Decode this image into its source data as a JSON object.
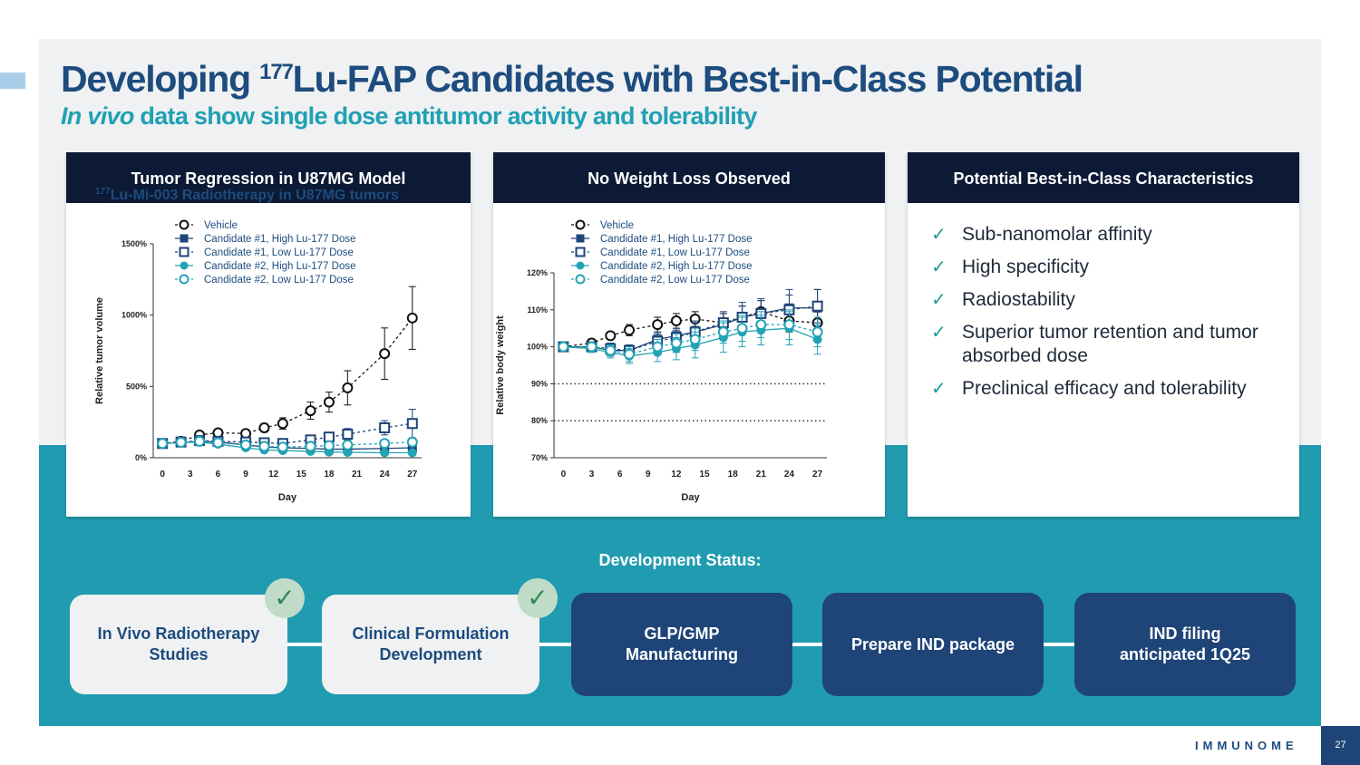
{
  "slide": {
    "title_pre": "Developing ",
    "title_sup": "177",
    "title_post": "Lu-FAP Candidates with Best-in-Class Potential",
    "subtitle_italic": "In vivo",
    "subtitle_rest": " data show single dose antitumor activity and tolerability",
    "page_number": "27",
    "logo_text": "IMMUNOME"
  },
  "colors": {
    "vehicle": "#111111",
    "cand1": "#1e4478",
    "cand2": "#22a3b5",
    "teal_bg": "#219bb0",
    "navy_header": "#0c1a36"
  },
  "legend": [
    "Vehicle",
    "Candidate #1, High Lu-177 Dose",
    "Candidate #1, Low Lu-177 Dose",
    "Candidate #2, High Lu-177 Dose",
    "Candidate #2, Low Lu-177 Dose"
  ],
  "chart_data": [
    {
      "type": "line",
      "header": "Tumor Regression in U87MG Model",
      "title_sup": "177",
      "title": "Lu-Mi-003 Radiotherapy in U87MG tumors",
      "xlabel": "Day",
      "ylabel": "Relative tumor volume",
      "xticks": [
        0,
        3,
        6,
        9,
        12,
        15,
        18,
        21,
        24,
        27
      ],
      "yticks": [
        "0%",
        "500%",
        "1000%",
        "1500%"
      ],
      "ytick_values": [
        0,
        500,
        1000,
        1500
      ],
      "xlim": [
        -1,
        28
      ],
      "ylim": [
        0,
        1500
      ],
      "series": [
        {
          "name": "Vehicle",
          "x": [
            0,
            2,
            4,
            6,
            9,
            11,
            13,
            16,
            18,
            20,
            24,
            27
          ],
          "y": [
            100,
            115,
            160,
            175,
            170,
            210,
            240,
            330,
            390,
            490,
            730,
            980
          ],
          "err": [
            0,
            10,
            15,
            15,
            25,
            30,
            40,
            60,
            70,
            120,
            180,
            220
          ]
        },
        {
          "name": "Candidate #1, High Lu-177 Dose",
          "x": [
            0,
            2,
            4,
            6,
            9,
            11,
            13,
            16,
            18,
            20,
            24,
            27
          ],
          "y": [
            100,
            105,
            115,
            110,
            90,
            75,
            70,
            65,
            60,
            60,
            65,
            70
          ],
          "err": [
            0,
            5,
            8,
            10,
            10,
            10,
            10,
            10,
            10,
            10,
            15,
            20
          ]
        },
        {
          "name": "Candidate #1, Low Lu-177 Dose",
          "x": [
            0,
            2,
            4,
            6,
            9,
            11,
            13,
            16,
            18,
            20,
            24,
            27
          ],
          "y": [
            100,
            110,
            120,
            115,
            110,
            105,
            100,
            125,
            145,
            165,
            210,
            240
          ],
          "err": [
            0,
            8,
            10,
            12,
            15,
            15,
            15,
            25,
            30,
            40,
            50,
            100
          ]
        },
        {
          "name": "Candidate #2, High Lu-177 Dose",
          "x": [
            0,
            2,
            4,
            6,
            9,
            11,
            13,
            16,
            18,
            20,
            24,
            27
          ],
          "y": [
            100,
            105,
            110,
            95,
            70,
            55,
            50,
            45,
            40,
            38,
            35,
            35
          ],
          "err": [
            0,
            5,
            8,
            10,
            10,
            10,
            8,
            8,
            8,
            8,
            8,
            8
          ]
        },
        {
          "name": "Candidate #2, Low Lu-177 Dose",
          "x": [
            0,
            2,
            4,
            6,
            9,
            11,
            13,
            16,
            18,
            20,
            24,
            27
          ],
          "y": [
            100,
            108,
            115,
            105,
            90,
            80,
            75,
            80,
            85,
            90,
            100,
            110
          ],
          "err": [
            0,
            6,
            8,
            10,
            10,
            10,
            10,
            12,
            15,
            15,
            20,
            25
          ]
        }
      ]
    },
    {
      "type": "line",
      "header": "No Weight Loss Observed",
      "xlabel": "Day",
      "ylabel": "Relative body weight",
      "xticks": [
        0,
        3,
        6,
        9,
        12,
        15,
        18,
        21,
        24,
        27
      ],
      "yticks": [
        "70%",
        "80%",
        "90%",
        "100%",
        "110%",
        "120%"
      ],
      "ytick_values": [
        70,
        80,
        90,
        100,
        110,
        120
      ],
      "reference_lines": [
        80,
        90
      ],
      "xlim": [
        -1,
        28
      ],
      "ylim": [
        70,
        120
      ],
      "series": [
        {
          "name": "Vehicle",
          "x": [
            0,
            3,
            5,
            7,
            10,
            12,
            14,
            17,
            19,
            21,
            24,
            27
          ],
          "y": [
            100,
            101,
            103,
            104.5,
            106,
            107,
            107.5,
            106.5,
            108,
            109.5,
            107,
            106.5
          ],
          "err": [
            0,
            1,
            1,
            1.5,
            2,
            2,
            2,
            2.5,
            3,
            3,
            3,
            3
          ]
        },
        {
          "name": "Candidate #1, High Lu-177 Dose",
          "x": [
            0,
            3,
            5,
            7,
            10,
            12,
            14,
            17,
            19,
            21,
            24,
            27
          ],
          "y": [
            100,
            100,
            99,
            99,
            102,
            103,
            104,
            106,
            108,
            109,
            110.5,
            110.5
          ],
          "err": [
            0,
            1,
            1.5,
            1.5,
            2,
            2,
            3,
            3,
            4,
            4,
            5,
            5
          ]
        },
        {
          "name": "Candidate #1, Low Lu-177 Dose",
          "x": [
            0,
            3,
            5,
            7,
            10,
            12,
            14,
            17,
            19,
            21,
            24,
            27
          ],
          "y": [
            100,
            100,
            99.5,
            99,
            101.5,
            102.5,
            104,
            106.5,
            108,
            109,
            110,
            111
          ],
          "err": [
            0,
            1,
            1.5,
            1.5,
            2,
            2,
            2.5,
            3,
            3,
            3.5,
            4,
            4.5
          ]
        },
        {
          "name": "Candidate #2, High Lu-177 Dose",
          "x": [
            0,
            3,
            5,
            7,
            10,
            12,
            14,
            17,
            19,
            21,
            24,
            27
          ],
          "y": [
            100,
            99.5,
            98.5,
            97.5,
            98.5,
            99.5,
            100.5,
            102.5,
            104,
            104.5,
            105,
            102
          ],
          "err": [
            0,
            1,
            1.5,
            2,
            2.5,
            3,
            3.5,
            4,
            4,
            4,
            4.5,
            4
          ]
        },
        {
          "name": "Candidate #2, Low Lu-177 Dose",
          "x": [
            0,
            3,
            5,
            7,
            10,
            12,
            14,
            17,
            19,
            21,
            24,
            27
          ],
          "y": [
            100,
            100,
            99,
            98,
            100,
            101,
            102,
            104,
            105,
            106,
            106,
            104
          ],
          "err": [
            0,
            1,
            1.5,
            2,
            2,
            2.5,
            3,
            3,
            3.5,
            3.5,
            4,
            4
          ]
        }
      ]
    }
  ],
  "characteristics": {
    "header": "Potential Best-in-Class Characteristics",
    "items": [
      "Sub-nanomolar affinity",
      "High specificity",
      "Radiostability",
      "Superior tumor retention and tumor absorbed dose",
      "Preclinical efficacy and tolerability"
    ]
  },
  "status": {
    "label": "Development Status:",
    "steps": [
      {
        "line1": "In Vivo Radiotherapy",
        "line2": "Studies",
        "done": true
      },
      {
        "line1": "Clinical Formulation",
        "line2": "Development",
        "done": true
      },
      {
        "line1": "GLP/GMP",
        "line2": "Manufacturing",
        "done": false
      },
      {
        "line1": "Prepare IND package",
        "line2": "",
        "done": false
      },
      {
        "line1": "IND filing",
        "line2": "anticipated 1Q25",
        "done": false
      }
    ]
  }
}
